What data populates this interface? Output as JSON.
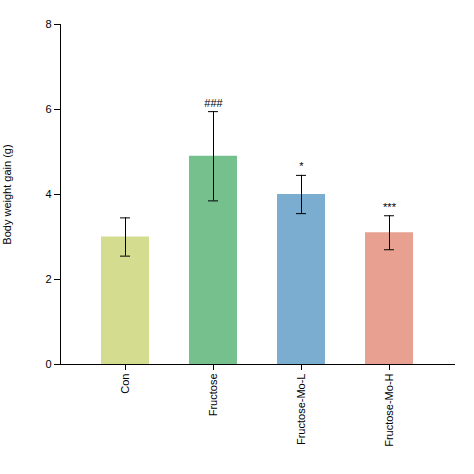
{
  "chart_data": {
    "type": "bar",
    "categories": [
      "Con",
      "Fructose",
      "Fructose-Mo-L",
      "Fructose-Mo-H"
    ],
    "values": [
      3.0,
      4.9,
      4.0,
      3.1
    ],
    "errors": [
      0.45,
      1.05,
      0.45,
      0.4
    ],
    "colors": [
      "#d4dc90",
      "#76c08e",
      "#7aadd0",
      "#e8a090"
    ],
    "annotations": [
      null,
      "###",
      "*",
      "***"
    ],
    "ylabel": "Body weight gain (g)",
    "ylim": [
      0,
      8
    ],
    "yticks": [
      0,
      2,
      4,
      6,
      8
    ]
  }
}
